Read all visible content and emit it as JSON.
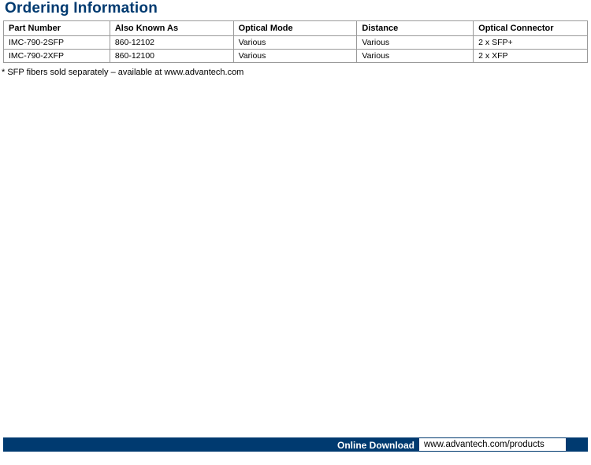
{
  "title": "Ordering Information",
  "table": {
    "columns": [
      "Part Number",
      "Also Known As",
      "Optical Mode",
      "Distance",
      "Optical Connector"
    ],
    "rows": [
      [
        "IMC-790-2SFP",
        "860-12102",
        "Various",
        "Various",
        "2 x SFP+"
      ],
      [
        "IMC-790-2XFP",
        "860-12100",
        "Various",
        "Various",
        "2 x XFP"
      ]
    ]
  },
  "footnote": "* SFP fibers sold separately – available at www.advantech.com",
  "footer": {
    "label": "Online Download",
    "url": "www.advantech.com/products"
  },
  "colors": {
    "brand": "#003a70",
    "border": "#9a9a9a",
    "text": "#000000",
    "bg": "#ffffff"
  }
}
